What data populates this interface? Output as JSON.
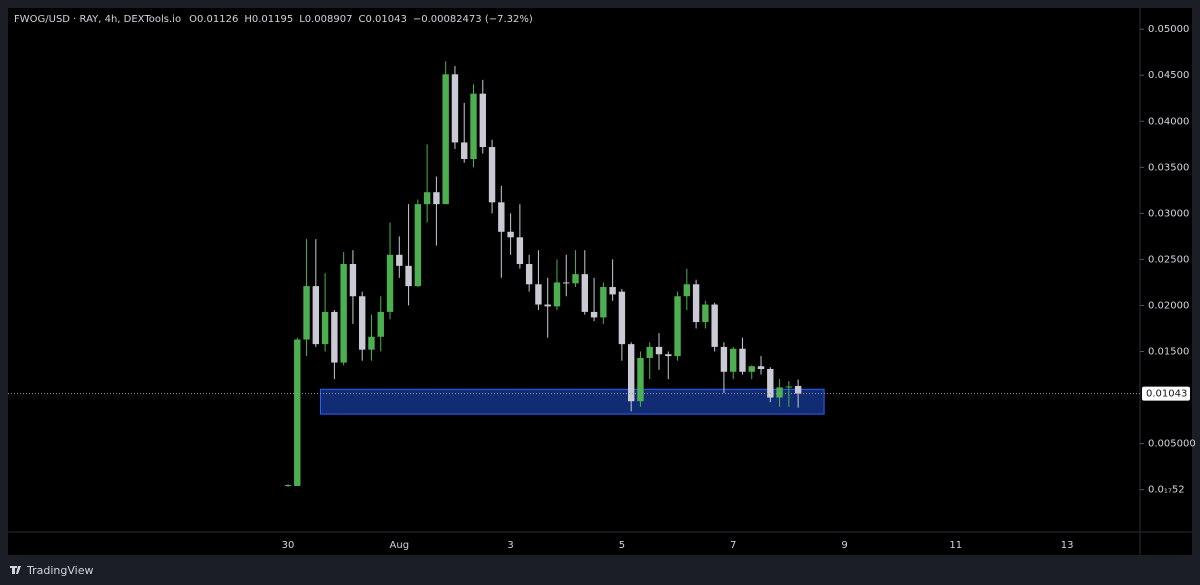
{
  "chart_data": {
    "type": "candlestick",
    "header": [
      "FWOG/USD · RAY, 4h, DEXTools.io",
      "O0.01126",
      "H0.01195",
      "L0.008907",
      "C0.01043",
      "−0.00082473 (−7.32%)"
    ],
    "footer": "TradingView",
    "xticks": [
      "30",
      "Aug",
      "3",
      "5",
      "7",
      "9",
      "11",
      "13"
    ],
    "ylim": [
      -0.0046,
      0.0523
    ],
    "yticks": [
      {
        "value": 0.05,
        "label": "0.05000"
      },
      {
        "value": 0.045,
        "label": "0.04500"
      },
      {
        "value": 0.04,
        "label": "0.04000"
      },
      {
        "value": 0.035,
        "label": "0.03500"
      },
      {
        "value": 0.03,
        "label": "0.03000"
      },
      {
        "value": 0.025,
        "label": "0.02500"
      },
      {
        "value": 0.02,
        "label": "0.02000"
      },
      {
        "value": 0.015,
        "label": "0.01500"
      },
      {
        "value": 0.005,
        "label": "0.005000"
      },
      {
        "value": 0,
        "label": "0.0₁₇52"
      }
    ],
    "up_color": "#4caf50",
    "down_color": "#c9cad3",
    "open": [
      0.0004,
      0.0004,
      0.0163,
      0.0221,
      0.0158,
      0.0193,
      0.0138,
      0.0245,
      0.021,
      0.0152,
      0.0166,
      0.0193,
      0.0255,
      0.0243,
      0.0221,
      0.031,
      0.0323,
      0.031,
      0.0451,
      0.0377,
      0.0359,
      0.043,
      0.0372,
      0.0312,
      0.028,
      0.0274,
      0.0245,
      0.0223,
      0.0201,
      0.0199,
      0.0225,
      0.0224,
      0.0234,
      0.0193,
      0.0187,
      0.022,
      0.0215,
      0.0158,
      0.0096,
      0.0143,
      0.0155,
      0.0147,
      0.0145,
      0.021,
      0.0223,
      0.0182,
      0.0201,
      0.0155,
      0.0128,
      0.0153,
      0.0128,
      0.0134,
      0.0131,
      0.01,
      0.0111,
      0.01126
    ],
    "high": [
      0.0006,
      0.0165,
      0.0272,
      0.0272,
      0.0235,
      0.0195,
      0.0258,
      0.026,
      0.0215,
      0.019,
      0.021,
      0.029,
      0.0275,
      0.031,
      0.0315,
      0.0375,
      0.034,
      0.0465,
      0.046,
      0.042,
      0.044,
      0.0445,
      0.038,
      0.033,
      0.03,
      0.031,
      0.0255,
      0.026,
      0.023,
      0.025,
      0.0255,
      0.026,
      0.026,
      0.023,
      0.0225,
      0.025,
      0.0218,
      0.016,
      0.015,
      0.016,
      0.017,
      0.015,
      0.0215,
      0.024,
      0.0228,
      0.0205,
      0.0203,
      0.016,
      0.0155,
      0.0165,
      0.0135,
      0.0145,
      0.0133,
      0.012,
      0.0118,
      0.01195
    ],
    "low": [
      0.0003,
      0.0004,
      0.0145,
      0.0155,
      0.015,
      0.012,
      0.0135,
      0.018,
      0.014,
      0.014,
      0.015,
      0.0185,
      0.023,
      0.02,
      0.022,
      0.029,
      0.0265,
      0.031,
      0.037,
      0.0355,
      0.035,
      0.0365,
      0.03,
      0.023,
      0.0255,
      0.024,
      0.0215,
      0.0195,
      0.0165,
      0.0195,
      0.021,
      0.022,
      0.019,
      0.0183,
      0.018,
      0.0205,
      0.014,
      0.0085,
      0.009,
      0.012,
      0.013,
      0.012,
      0.014,
      0.0195,
      0.0175,
      0.0175,
      0.015,
      0.0105,
      0.012,
      0.0125,
      0.012,
      0.0125,
      0.0095,
      0.009,
      0.009,
      0.008907
    ],
    "close": [
      0.0005,
      0.0163,
      0.0221,
      0.0158,
      0.0193,
      0.0138,
      0.0245,
      0.021,
      0.0152,
      0.0166,
      0.0193,
      0.0255,
      0.0243,
      0.0221,
      0.031,
      0.0323,
      0.031,
      0.0451,
      0.0377,
      0.0359,
      0.043,
      0.0372,
      0.0312,
      0.028,
      0.0274,
      0.0245,
      0.0223,
      0.0201,
      0.0199,
      0.0225,
      0.0224,
      0.0234,
      0.0193,
      0.0187,
      0.022,
      0.0212,
      0.0158,
      0.0096,
      0.0143,
      0.0155,
      0.0147,
      0.0145,
      0.021,
      0.0223,
      0.0182,
      0.0201,
      0.0155,
      0.0128,
      0.0153,
      0.0128,
      0.0134,
      0.0131,
      0.01,
      0.0111,
      0.0112,
      0.01043
    ],
    "last_price": 0.01043,
    "zone": {
      "high": 0.0109,
      "low": 0.0082,
      "start_candle": 4,
      "end_candle": 58.3,
      "color": "#2962ff"
    }
  }
}
